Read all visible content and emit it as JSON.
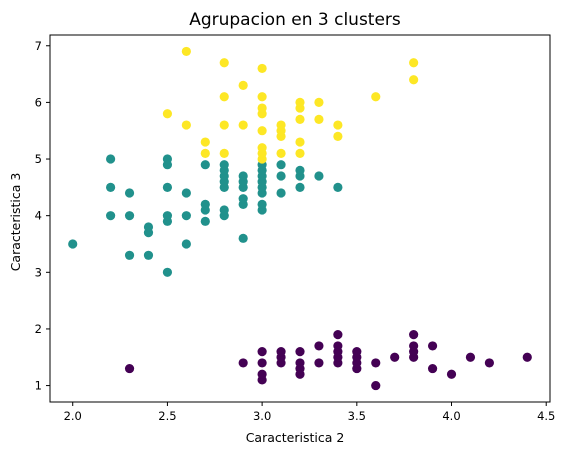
{
  "chart_data": {
    "type": "scatter",
    "title": "Agrupacion en 3 clusters",
    "xlabel": "Caracteristica 2",
    "ylabel": "Caracteristica 3",
    "xlim": [
      1.88,
      4.52
    ],
    "ylim": [
      0.71,
      7.19
    ],
    "xticks": [
      2.0,
      2.5,
      3.0,
      3.5,
      4.0,
      4.5
    ],
    "xtick_labels": [
      "2.0",
      "2.5",
      "3.0",
      "3.5",
      "4.0",
      "4.5"
    ],
    "yticks": [
      1,
      2,
      3,
      4,
      5,
      6,
      7
    ],
    "ytick_labels": [
      "1",
      "2",
      "3",
      "4",
      "5",
      "6",
      "7"
    ],
    "grid": false,
    "legend": "none",
    "series": [
      {
        "color": "#440154",
        "points": [
          [
            2.3,
            1.3
          ],
          [
            2.9,
            1.4
          ],
          [
            3.0,
            1.1
          ],
          [
            3.0,
            1.2
          ],
          [
            3.0,
            1.4
          ],
          [
            3.0,
            1.6
          ],
          [
            3.1,
            1.4
          ],
          [
            3.1,
            1.5
          ],
          [
            3.1,
            1.6
          ],
          [
            3.2,
            1.2
          ],
          [
            3.2,
            1.3
          ],
          [
            3.2,
            1.4
          ],
          [
            3.2,
            1.6
          ],
          [
            3.3,
            1.4
          ],
          [
            3.3,
            1.7
          ],
          [
            3.4,
            1.4
          ],
          [
            3.4,
            1.5
          ],
          [
            3.4,
            1.6
          ],
          [
            3.4,
            1.7
          ],
          [
            3.4,
            1.9
          ],
          [
            3.5,
            1.3
          ],
          [
            3.5,
            1.4
          ],
          [
            3.5,
            1.5
          ],
          [
            3.5,
            1.6
          ],
          [
            3.6,
            1.0
          ],
          [
            3.6,
            1.4
          ],
          [
            3.7,
            1.5
          ],
          [
            3.8,
            1.5
          ],
          [
            3.8,
            1.6
          ],
          [
            3.8,
            1.7
          ],
          [
            3.8,
            1.9
          ],
          [
            3.9,
            1.3
          ],
          [
            3.9,
            1.7
          ],
          [
            4.0,
            1.2
          ],
          [
            4.1,
            1.5
          ],
          [
            4.2,
            1.4
          ],
          [
            4.4,
            1.5
          ]
        ]
      },
      {
        "color": "#21918c",
        "points": [
          [
            2.0,
            3.5
          ],
          [
            2.2,
            4.0
          ],
          [
            2.2,
            4.5
          ],
          [
            2.2,
            5.0
          ],
          [
            2.3,
            3.3
          ],
          [
            2.3,
            4.0
          ],
          [
            2.3,
            4.4
          ],
          [
            2.4,
            3.3
          ],
          [
            2.4,
            3.7
          ],
          [
            2.4,
            3.8
          ],
          [
            2.5,
            3.0
          ],
          [
            2.5,
            3.9
          ],
          [
            2.5,
            4.0
          ],
          [
            2.5,
            4.5
          ],
          [
            2.5,
            4.9
          ],
          [
            2.5,
            5.0
          ],
          [
            2.6,
            3.5
          ],
          [
            2.6,
            4.0
          ],
          [
            2.6,
            4.4
          ],
          [
            2.7,
            3.9
          ],
          [
            2.7,
            4.1
          ],
          [
            2.7,
            4.2
          ],
          [
            2.7,
            4.9
          ],
          [
            2.8,
            4.0
          ],
          [
            2.8,
            4.1
          ],
          [
            2.8,
            4.5
          ],
          [
            2.8,
            4.6
          ],
          [
            2.8,
            4.7
          ],
          [
            2.8,
            4.8
          ],
          [
            2.8,
            4.9
          ],
          [
            2.9,
            3.6
          ],
          [
            2.9,
            4.2
          ],
          [
            2.9,
            4.3
          ],
          [
            2.9,
            4.5
          ],
          [
            2.9,
            4.6
          ],
          [
            2.9,
            4.7
          ],
          [
            3.0,
            4.1
          ],
          [
            3.0,
            4.2
          ],
          [
            3.0,
            4.4
          ],
          [
            3.0,
            4.5
          ],
          [
            3.0,
            4.6
          ],
          [
            3.0,
            4.7
          ],
          [
            3.0,
            4.8
          ],
          [
            3.0,
            4.9
          ],
          [
            3.1,
            4.4
          ],
          [
            3.1,
            4.7
          ],
          [
            3.1,
            4.9
          ],
          [
            3.2,
            4.5
          ],
          [
            3.2,
            4.7
          ],
          [
            3.2,
            4.8
          ],
          [
            3.3,
            4.7
          ],
          [
            3.4,
            4.5
          ]
        ]
      },
      {
        "color": "#fde725",
        "points": [
          [
            2.5,
            5.8
          ],
          [
            2.6,
            5.6
          ],
          [
            2.6,
            6.9
          ],
          [
            2.7,
            5.1
          ],
          [
            2.7,
            5.3
          ],
          [
            2.8,
            5.1
          ],
          [
            2.8,
            5.6
          ],
          [
            2.8,
            6.1
          ],
          [
            2.8,
            6.7
          ],
          [
            2.9,
            5.6
          ],
          [
            2.9,
            6.3
          ],
          [
            3.0,
            5.0
          ],
          [
            3.0,
            5.1
          ],
          [
            3.0,
            5.2
          ],
          [
            3.0,
            5.5
          ],
          [
            3.0,
            5.8
          ],
          [
            3.0,
            5.9
          ],
          [
            3.0,
            6.1
          ],
          [
            3.0,
            6.6
          ],
          [
            3.1,
            5.1
          ],
          [
            3.1,
            5.4
          ],
          [
            3.1,
            5.5
          ],
          [
            3.1,
            5.6
          ],
          [
            3.2,
            5.1
          ],
          [
            3.2,
            5.3
          ],
          [
            3.2,
            5.7
          ],
          [
            3.2,
            5.9
          ],
          [
            3.2,
            6.0
          ],
          [
            3.3,
            5.7
          ],
          [
            3.3,
            6.0
          ],
          [
            3.4,
            5.4
          ],
          [
            3.4,
            5.6
          ],
          [
            3.6,
            6.1
          ],
          [
            3.8,
            6.4
          ],
          [
            3.8,
            6.7
          ]
        ]
      }
    ]
  }
}
